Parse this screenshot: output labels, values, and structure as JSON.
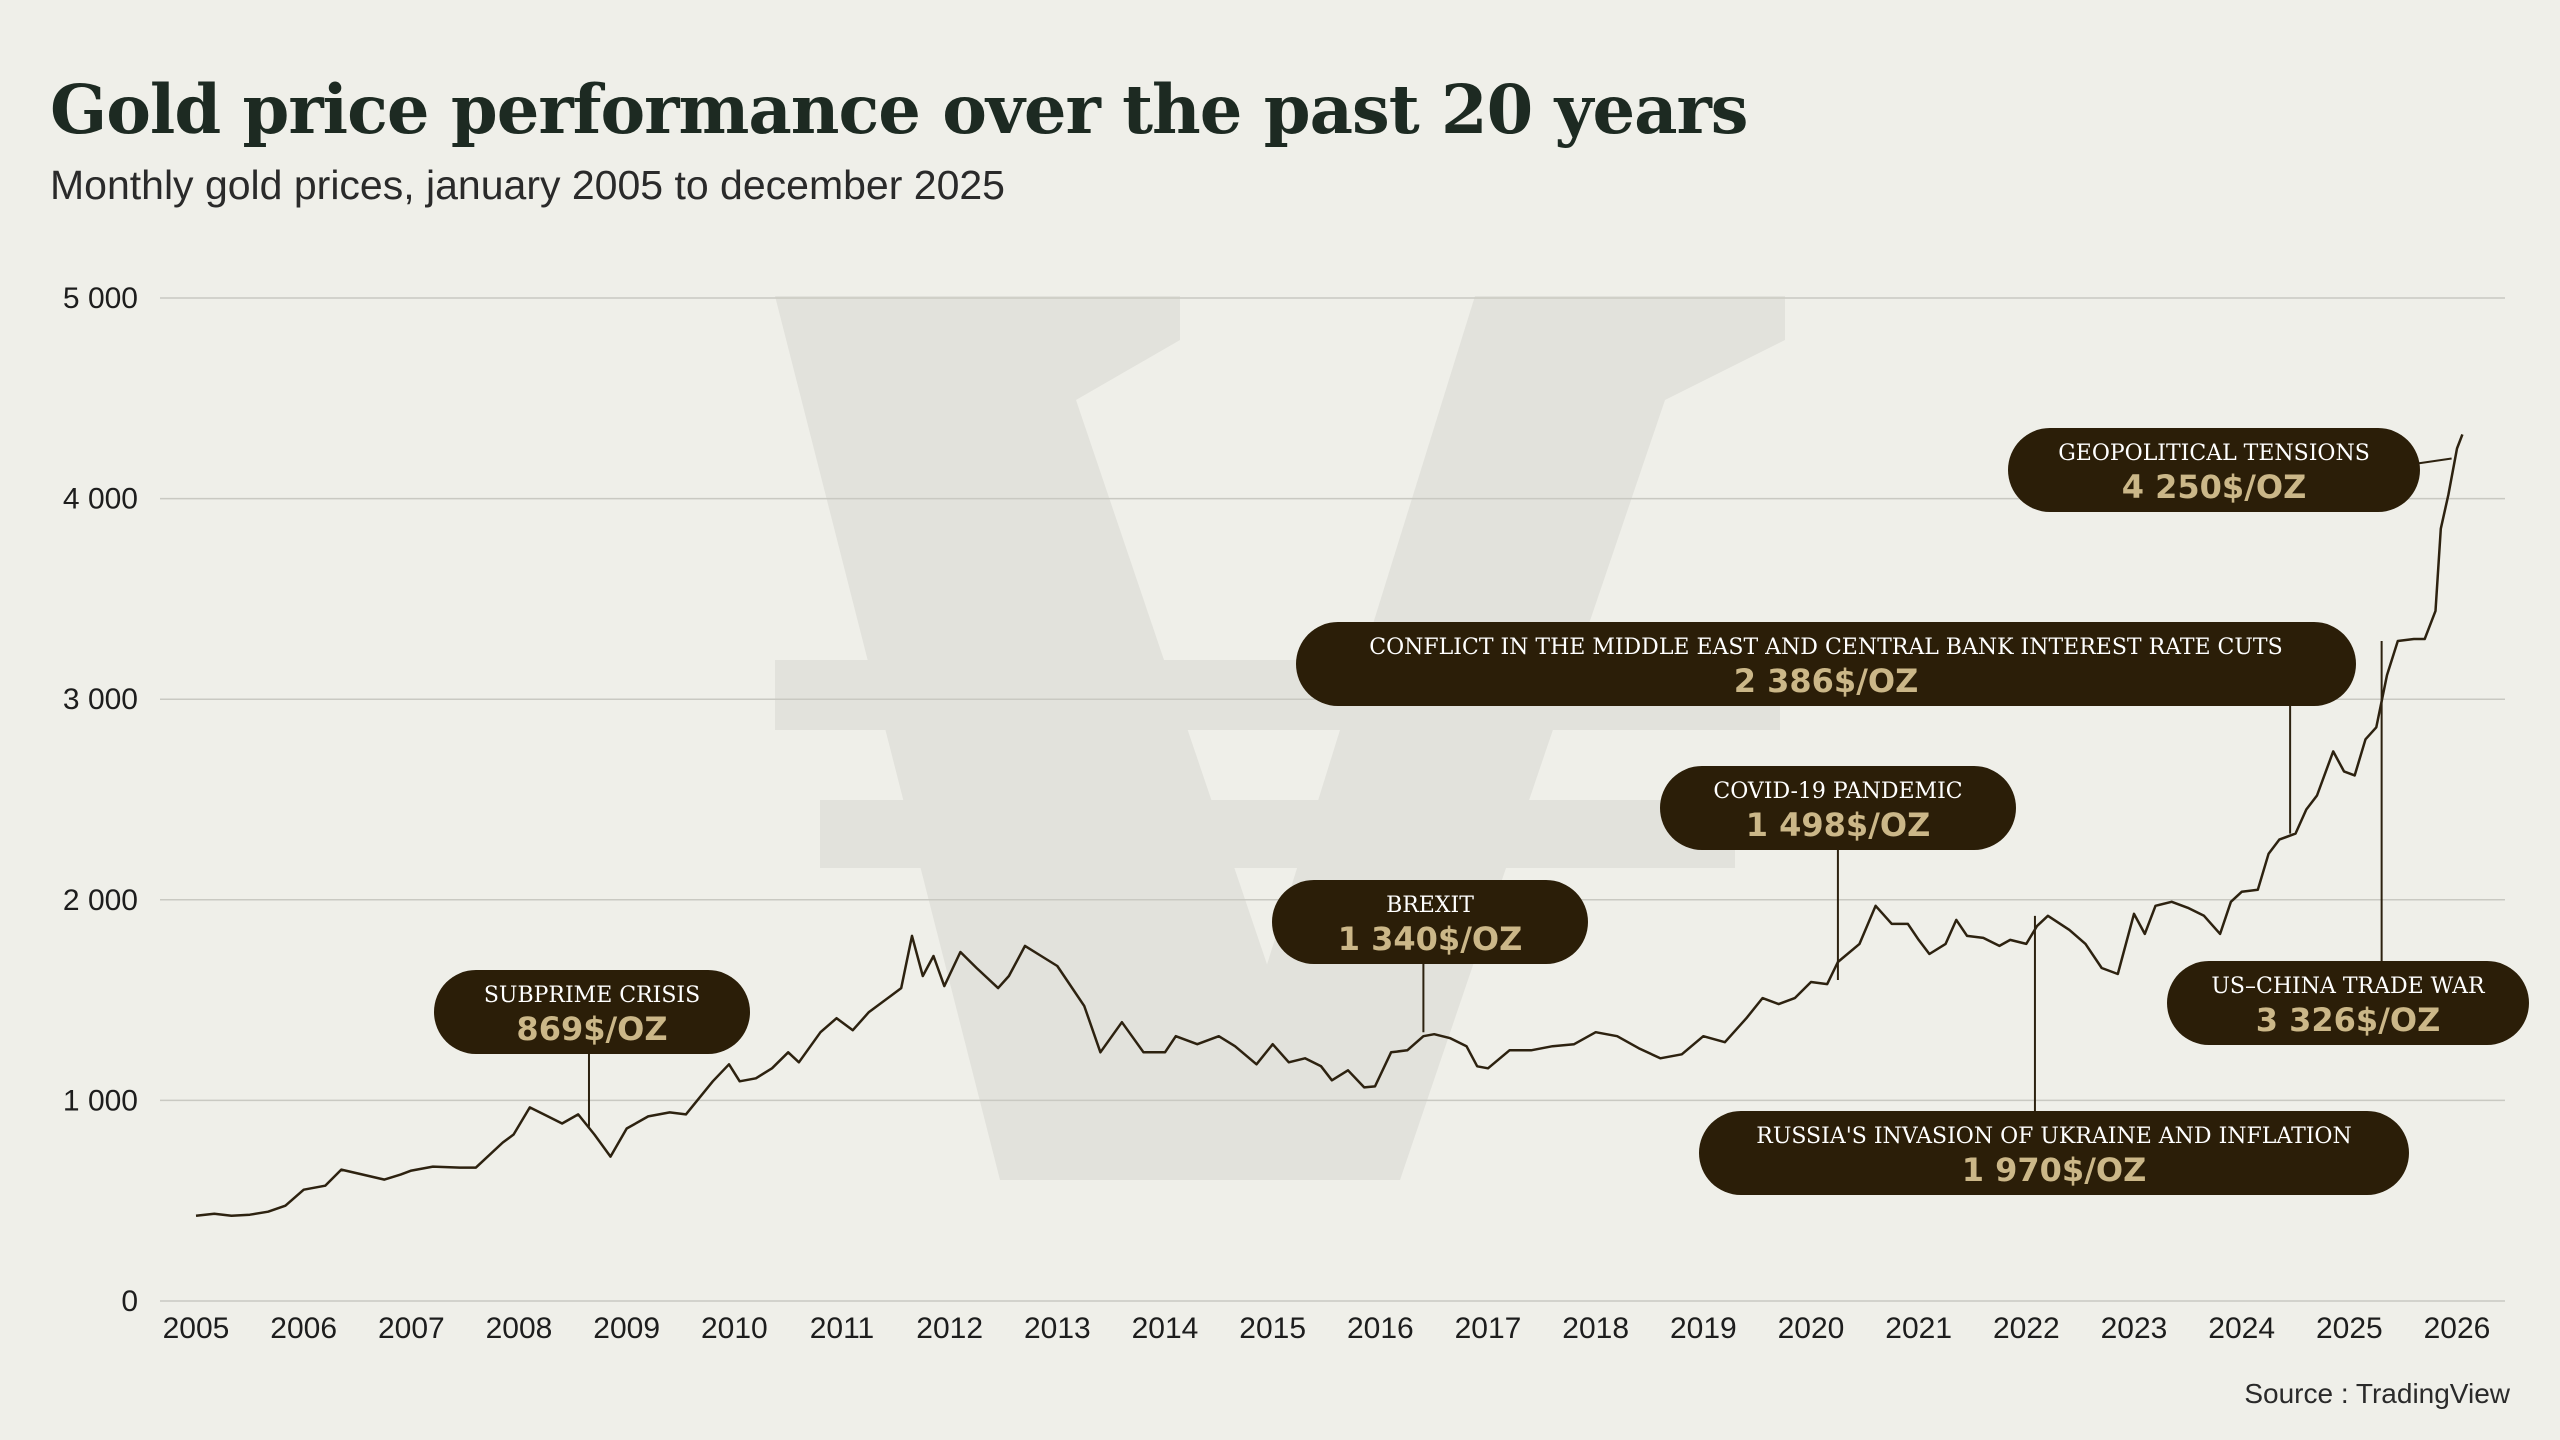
{
  "header": {
    "title": "Gold price performance over the past 20 years",
    "subtitle": "Monthly gold prices, january 2005 to december 2025"
  },
  "footer": {
    "source": "Source : TradingView"
  },
  "colors": {
    "background": "#efefe9",
    "line": "#2d2210",
    "grid": "#c9c9c2",
    "annotation_bg": "#2b1e08",
    "annotation_label": "#ffffff",
    "annotation_value": "#cbb788",
    "watermark": "#e2e2dc"
  },
  "watermark_icon": "yen-sign-icon",
  "chart_data": {
    "type": "line",
    "title": "Gold price performance over the past 20 years",
    "subtitle": "Monthly gold prices, january 2005 to december 2025",
    "xlabel": "",
    "ylabel": "",
    "xlim": [
      2005,
      2026
    ],
    "ylim": [
      0,
      5000
    ],
    "y_ticks": [
      {
        "value": 0,
        "label": "0"
      },
      {
        "value": 1000,
        "label": "1 000"
      },
      {
        "value": 2000,
        "label": "2 000"
      },
      {
        "value": 3000,
        "label": "3 000"
      },
      {
        "value": 4000,
        "label": "4 000"
      },
      {
        "value": 5000,
        "label": "5 000"
      }
    ],
    "x_ticks": [
      {
        "value": 2005,
        "label": "2005"
      },
      {
        "value": 2006,
        "label": "2006"
      },
      {
        "value": 2007,
        "label": "2007"
      },
      {
        "value": 2008,
        "label": "2008"
      },
      {
        "value": 2009,
        "label": "2009"
      },
      {
        "value": 2010,
        "label": "2010"
      },
      {
        "value": 2011,
        "label": "2011"
      },
      {
        "value": 2012,
        "label": "2012"
      },
      {
        "value": 2013,
        "label": "2013"
      },
      {
        "value": 2014,
        "label": "2014"
      },
      {
        "value": 2015,
        "label": "2015"
      },
      {
        "value": 2016,
        "label": "2016"
      },
      {
        "value": 2017,
        "label": "2017"
      },
      {
        "value": 2018,
        "label": "2018"
      },
      {
        "value": 2019,
        "label": "2019"
      },
      {
        "value": 2020,
        "label": "2020"
      },
      {
        "value": 2021,
        "label": "2021"
      },
      {
        "value": 2022,
        "label": "2022"
      },
      {
        "value": 2023,
        "label": "2023"
      },
      {
        "value": 2024,
        "label": "2024"
      },
      {
        "value": 2025,
        "label": "2025"
      },
      {
        "value": 2026,
        "label": "2026"
      }
    ],
    "grid": true,
    "legend": "none",
    "series": [
      {
        "points": [
          [
            2005.0,
            425
          ],
          [
            2005.17,
            435
          ],
          [
            2005.33,
            425
          ],
          [
            2005.5,
            430
          ],
          [
            2005.67,
            445
          ],
          [
            2005.83,
            475
          ],
          [
            2006.0,
            555
          ],
          [
            2006.2,
            575
          ],
          [
            2006.35,
            655
          ],
          [
            2006.55,
            630
          ],
          [
            2006.75,
            605
          ],
          [
            2006.9,
            630
          ],
          [
            2007.0,
            650
          ],
          [
            2007.2,
            670
          ],
          [
            2007.45,
            665
          ],
          [
            2007.6,
            665
          ],
          [
            2007.85,
            790
          ],
          [
            2007.95,
            830
          ],
          [
            2008.1,
            965
          ],
          [
            2008.25,
            925
          ],
          [
            2008.4,
            885
          ],
          [
            2008.55,
            930
          ],
          [
            2008.7,
            830
          ],
          [
            2008.85,
            720
          ],
          [
            2009.0,
            860
          ],
          [
            2009.2,
            920
          ],
          [
            2009.4,
            940
          ],
          [
            2009.55,
            930
          ],
          [
            2009.8,
            1095
          ],
          [
            2009.95,
            1180
          ],
          [
            2010.05,
            1095
          ],
          [
            2010.2,
            1110
          ],
          [
            2010.35,
            1160
          ],
          [
            2010.5,
            1240
          ],
          [
            2010.6,
            1190
          ],
          [
            2010.8,
            1340
          ],
          [
            2010.95,
            1410
          ],
          [
            2011.1,
            1350
          ],
          [
            2011.25,
            1440
          ],
          [
            2011.45,
            1520
          ],
          [
            2011.55,
            1560
          ],
          [
            2011.65,
            1820
          ],
          [
            2011.75,
            1620
          ],
          [
            2011.85,
            1720
          ],
          [
            2011.95,
            1570
          ],
          [
            2012.1,
            1740
          ],
          [
            2012.25,
            1660
          ],
          [
            2012.45,
            1560
          ],
          [
            2012.55,
            1620
          ],
          [
            2012.7,
            1770
          ],
          [
            2012.85,
            1720
          ],
          [
            2013.0,
            1670
          ],
          [
            2013.1,
            1590
          ],
          [
            2013.25,
            1470
          ],
          [
            2013.4,
            1240
          ],
          [
            2013.6,
            1390
          ],
          [
            2013.8,
            1240
          ],
          [
            2014.0,
            1240
          ],
          [
            2014.1,
            1320
          ],
          [
            2014.3,
            1280
          ],
          [
            2014.5,
            1320
          ],
          [
            2014.65,
            1270
          ],
          [
            2014.85,
            1180
          ],
          [
            2015.0,
            1280
          ],
          [
            2015.15,
            1190
          ],
          [
            2015.3,
            1210
          ],
          [
            2015.45,
            1170
          ],
          [
            2015.55,
            1100
          ],
          [
            2015.7,
            1150
          ],
          [
            2015.85,
            1065
          ],
          [
            2015.95,
            1070
          ],
          [
            2016.1,
            1240
          ],
          [
            2016.25,
            1250
          ],
          [
            2016.4,
            1320
          ],
          [
            2016.5,
            1330
          ],
          [
            2016.65,
            1310
          ],
          [
            2016.8,
            1270
          ],
          [
            2016.9,
            1170
          ],
          [
            2017.0,
            1160
          ],
          [
            2017.2,
            1250
          ],
          [
            2017.4,
            1250
          ],
          [
            2017.6,
            1270
          ],
          [
            2017.8,
            1280
          ],
          [
            2018.0,
            1340
          ],
          [
            2018.2,
            1320
          ],
          [
            2018.4,
            1260
          ],
          [
            2018.6,
            1210
          ],
          [
            2018.8,
            1230
          ],
          [
            2019.0,
            1320
          ],
          [
            2019.2,
            1290
          ],
          [
            2019.4,
            1410
          ],
          [
            2019.55,
            1510
          ],
          [
            2019.7,
            1480
          ],
          [
            2019.85,
            1510
          ],
          [
            2020.0,
            1590
          ],
          [
            2020.15,
            1580
          ],
          [
            2020.25,
            1690
          ],
          [
            2020.45,
            1780
          ],
          [
            2020.6,
            1970
          ],
          [
            2020.75,
            1880
          ],
          [
            2020.9,
            1880
          ],
          [
            2021.0,
            1800
          ],
          [
            2021.1,
            1730
          ],
          [
            2021.25,
            1780
          ],
          [
            2021.35,
            1900
          ],
          [
            2021.45,
            1820
          ],
          [
            2021.6,
            1810
          ],
          [
            2021.75,
            1770
          ],
          [
            2021.85,
            1800
          ],
          [
            2022.0,
            1780
          ],
          [
            2022.1,
            1870
          ],
          [
            2022.2,
            1920
          ],
          [
            2022.4,
            1850
          ],
          [
            2022.55,
            1780
          ],
          [
            2022.7,
            1660
          ],
          [
            2022.85,
            1630
          ],
          [
            2023.0,
            1930
          ],
          [
            2023.1,
            1830
          ],
          [
            2023.2,
            1970
          ],
          [
            2023.35,
            1990
          ],
          [
            2023.5,
            1960
          ],
          [
            2023.65,
            1920
          ],
          [
            2023.8,
            1830
          ],
          [
            2023.9,
            1990
          ],
          [
            2024.0,
            2040
          ],
          [
            2024.15,
            2050
          ],
          [
            2024.25,
            2230
          ],
          [
            2024.35,
            2300
          ],
          [
            2024.5,
            2330
          ],
          [
            2024.6,
            2450
          ],
          [
            2024.7,
            2520
          ],
          [
            2024.85,
            2740
          ],
          [
            2024.95,
            2640
          ],
          [
            2025.05,
            2620
          ],
          [
            2025.15,
            2800
          ],
          [
            2025.25,
            2860
          ],
          [
            2025.35,
            3120
          ],
          [
            2025.45,
            3290
          ],
          [
            2025.6,
            3300
          ],
          [
            2025.7,
            3300
          ],
          [
            2025.8,
            3440
          ],
          [
            2025.85,
            3850
          ],
          [
            2025.92,
            4020
          ],
          [
            2026.0,
            4250
          ],
          [
            2026.05,
            4320
          ]
        ]
      }
    ],
    "annotations": [
      {
        "label": "SUBPRIME CRISIS",
        "value": "869$/OZ",
        "x": 2008.65,
        "y": 869
      },
      {
        "label": "BREXIT",
        "value": "1 340$/OZ",
        "x": 2016.4,
        "y": 1340
      },
      {
        "label": "COVID-19 PANDEMIC",
        "value": "1 498$/OZ",
        "x": 2020.25,
        "y": 1600
      },
      {
        "label": "CONFLICT IN THE MIDDLE EAST AND CENTRAL BANK INTEREST RATE CUTS",
        "value": "2 386$/OZ",
        "x": 2024.45,
        "y": 2330
      },
      {
        "label": "GEOPOLITICAL TENSIONS",
        "value": "4 250$/OZ",
        "x": 2025.95,
        "y": 4200
      },
      {
        "label": "RUSSIA'S INVASION OF UKRAINE AND INFLATION",
        "value": "1 970$/OZ",
        "x": 2022.08,
        "y": 1920
      },
      {
        "label": "US–CHINA TRADE WAR",
        "value": "3 326$/OZ",
        "x": 2025.3,
        "y": 3290
      }
    ]
  }
}
